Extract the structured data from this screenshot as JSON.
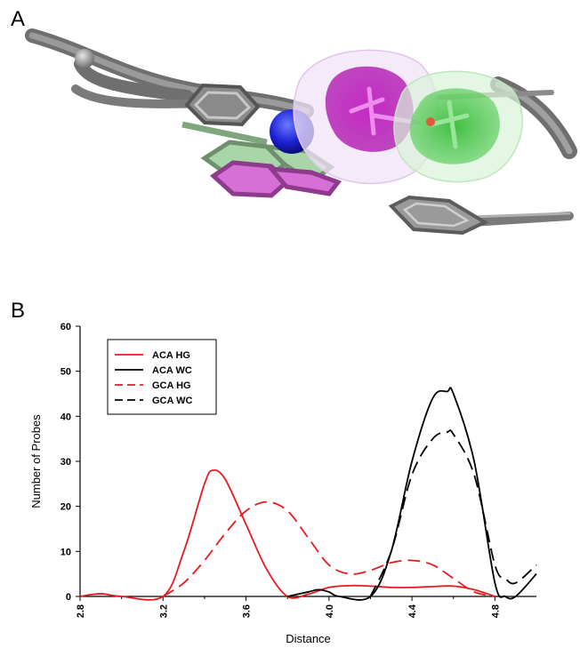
{
  "panels": {
    "a_label": "A",
    "b_label": "B"
  },
  "chart_data": {
    "type": "line",
    "title": "",
    "xlabel": "Distance",
    "ylabel": "Number of Probes",
    "xlim": [
      2.8,
      5.0
    ],
    "ylim": [
      0,
      60
    ],
    "xticks": [
      "2.8",
      "3.2",
      "3.6",
      "4.0",
      "4.4",
      "4.8"
    ],
    "yticks": [
      "0",
      "10",
      "20",
      "30",
      "40",
      "50",
      "60"
    ],
    "legend_position": "top-left",
    "series": [
      {
        "name": "ACA HG",
        "color": "#e8191f",
        "dash": "solid",
        "x": [
          2.8,
          2.9,
          3.0,
          3.2,
          3.3,
          3.4,
          3.44,
          3.5,
          3.6,
          3.7,
          3.8,
          3.9,
          4.0,
          4.1,
          4.2,
          4.3,
          4.4,
          4.5,
          4.6,
          4.7,
          4.8
        ],
        "y": [
          0,
          0.6,
          0,
          0,
          10,
          25,
          28,
          26,
          16,
          6,
          0,
          0.5,
          2,
          2.4,
          2.3,
          2.0,
          2.0,
          2.2,
          2.3,
          1.5,
          0
        ]
      },
      {
        "name": "ACA WC",
        "color": "#000000",
        "dash": "solid",
        "x": [
          3.8,
          3.9,
          3.95,
          4.0,
          4.05,
          4.2,
          4.3,
          4.4,
          4.5,
          4.57,
          4.6,
          4.7,
          4.8,
          4.85,
          4.9,
          5.0
        ],
        "y": [
          0,
          1.0,
          1.5,
          1.0,
          0,
          0,
          10,
          30,
          44,
          45.5,
          45,
          30,
          3,
          0,
          0,
          5
        ]
      },
      {
        "name": "GCA HG",
        "color": "#e8191f",
        "dash": "dashed",
        "x": [
          3.2,
          3.3,
          3.4,
          3.5,
          3.6,
          3.7,
          3.8,
          3.9,
          4.0,
          4.1,
          4.2,
          4.3,
          4.4,
          4.5,
          4.6,
          4.7,
          4.8
        ],
        "y": [
          0,
          3,
          8,
          14,
          19,
          21,
          19,
          13,
          7,
          5,
          5.8,
          7.5,
          8,
          7,
          4,
          1,
          0
        ]
      },
      {
        "name": "GCA WC",
        "color": "#000000",
        "dash": "dashed",
        "x": [
          4.2,
          4.3,
          4.4,
          4.5,
          4.57,
          4.6,
          4.7,
          4.8,
          4.85,
          4.9,
          5.0
        ],
        "y": [
          0,
          10,
          27,
          35,
          36.5,
          36,
          27,
          7,
          4,
          3,
          7
        ]
      }
    ]
  }
}
